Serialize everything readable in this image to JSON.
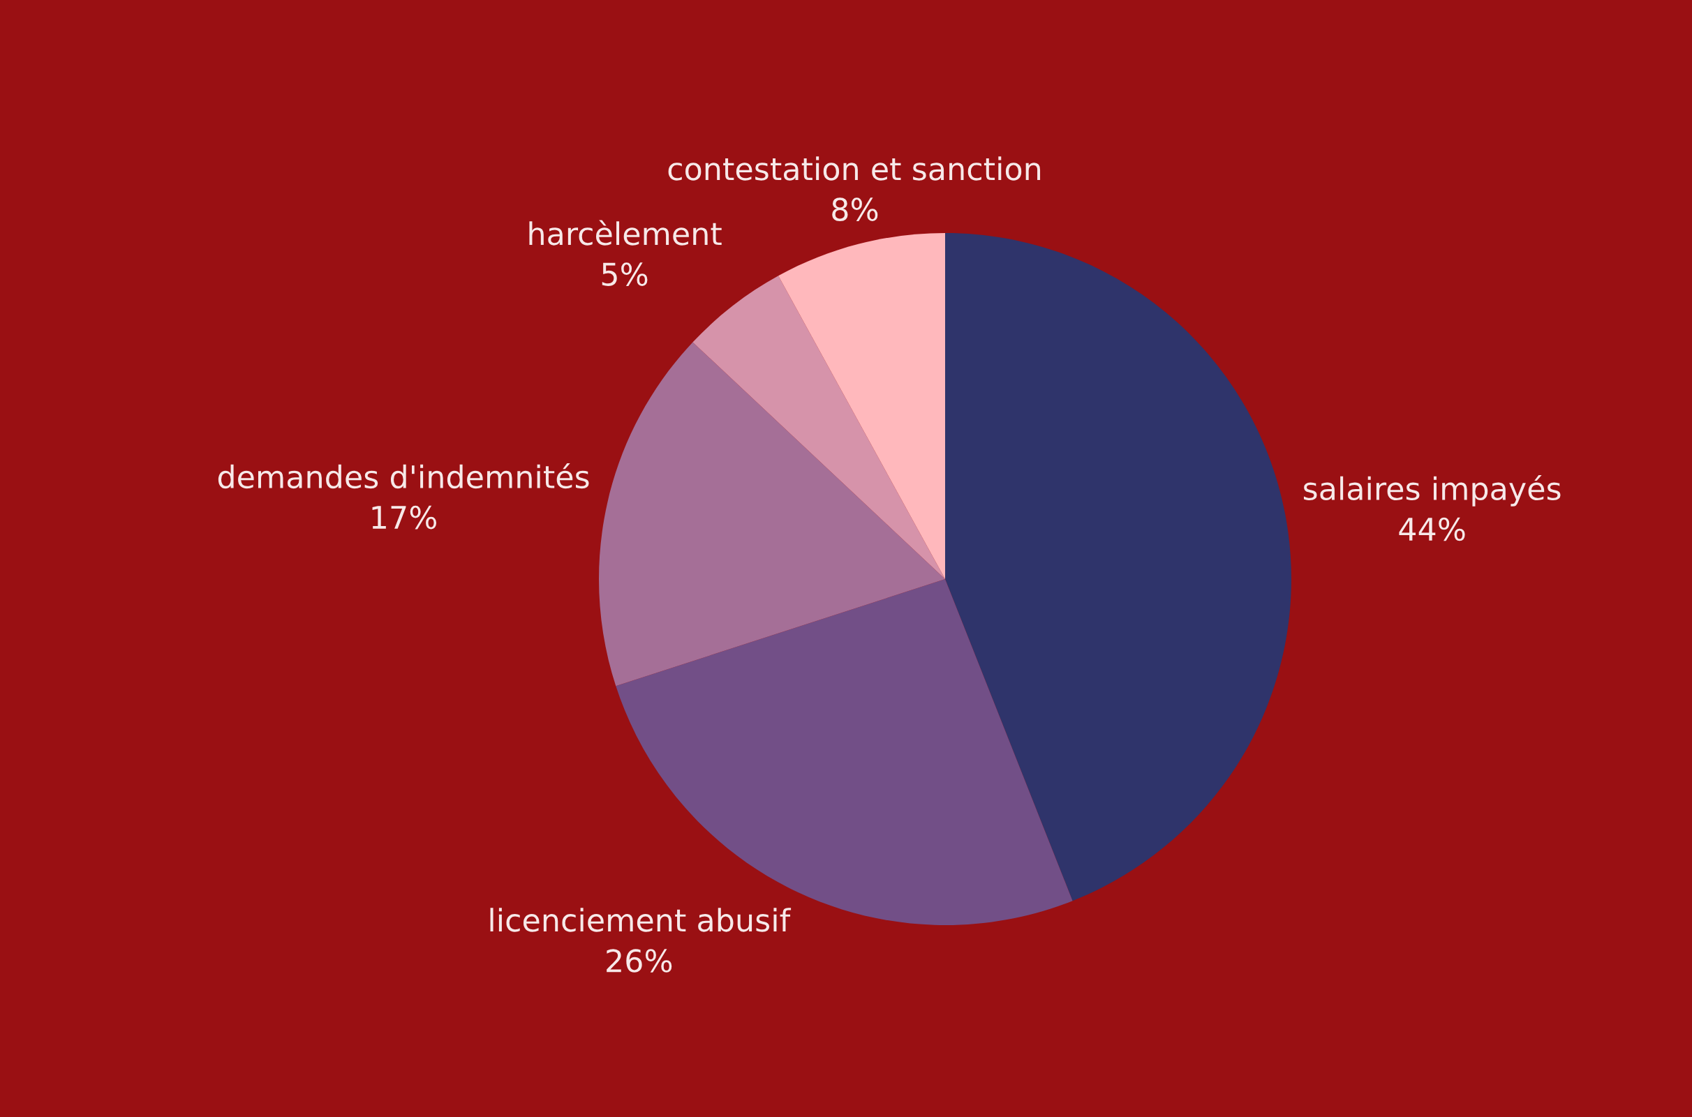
{
  "chart_data": {
    "type": "pie",
    "categories": [
      "salaires impayés",
      "licenciement abusif",
      "demandes d'indemnités",
      "harcèlement",
      "contestation et sanction"
    ],
    "values": [
      44,
      26,
      17,
      5,
      8
    ],
    "value_labels": [
      "44%",
      "26%",
      "17%",
      "5%",
      "8%"
    ],
    "colors": [
      "#2f346b",
      "#724f87",
      "#a56f97",
      "#d693aa",
      "#ffb8bc"
    ],
    "legend": false
  }
}
